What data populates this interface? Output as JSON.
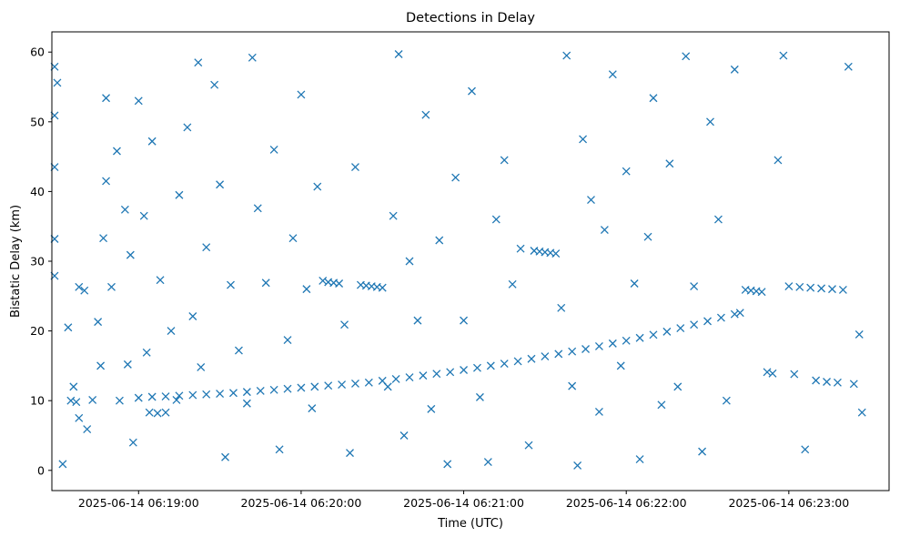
{
  "chart_data": {
    "type": "scatter",
    "title": "Detections in Delay",
    "xlabel": "Time (UTC)",
    "ylabel": "Bistatic Delay (km)",
    "marker": "x",
    "color": "#1f77b4",
    "grid": false,
    "x_axis": {
      "type": "time",
      "range": [
        "2025-06-14 06:18:28",
        "2025-06-14 06:23:37"
      ],
      "ticks": [
        "2025-06-14 06:19:00",
        "2025-06-14 06:20:00",
        "2025-06-14 06:21:00",
        "2025-06-14 06:22:00",
        "2025-06-14 06:23:00"
      ]
    },
    "y_axis": {
      "range": [
        -2.9,
        62.9
      ],
      "ticks": [
        0,
        10,
        20,
        30,
        40,
        50,
        60
      ]
    },
    "series": [
      {
        "description_of_data": "main track rising from ~10.3 km to ~22.5 km",
        "points": [
          [
            "2025-06-14 06:19:00",
            10.4
          ],
          [
            "2025-06-14 06:19:05",
            10.55
          ],
          [
            "2025-06-14 06:19:10",
            10.6
          ],
          [
            "2025-06-14 06:19:15",
            10.7
          ],
          [
            "2025-06-14 06:19:20",
            10.8
          ],
          [
            "2025-06-14 06:19:25",
            10.9
          ],
          [
            "2025-06-14 06:19:30",
            11.0
          ],
          [
            "2025-06-14 06:19:35",
            11.1
          ],
          [
            "2025-06-14 06:19:40",
            11.25
          ],
          [
            "2025-06-14 06:19:45",
            11.4
          ],
          [
            "2025-06-14 06:19:50",
            11.55
          ],
          [
            "2025-06-14 06:19:55",
            11.7
          ],
          [
            "2025-06-14 06:20:00",
            11.85
          ],
          [
            "2025-06-14 06:20:05",
            12.0
          ],
          [
            "2025-06-14 06:20:10",
            12.15
          ],
          [
            "2025-06-14 06:20:15",
            12.3
          ],
          [
            "2025-06-14 06:20:20",
            12.45
          ],
          [
            "2025-06-14 06:20:25",
            12.6
          ],
          [
            "2025-06-14 06:20:30",
            12.85
          ],
          [
            "2025-06-14 06:20:35",
            13.1
          ],
          [
            "2025-06-14 06:20:40",
            13.35
          ],
          [
            "2025-06-14 06:20:45",
            13.6
          ],
          [
            "2025-06-14 06:20:50",
            13.85
          ],
          [
            "2025-06-14 06:20:55",
            14.1
          ],
          [
            "2025-06-14 06:21:00",
            14.4
          ],
          [
            "2025-06-14 06:21:05",
            14.7
          ],
          [
            "2025-06-14 06:21:10",
            15.0
          ],
          [
            "2025-06-14 06:21:15",
            15.3
          ],
          [
            "2025-06-14 06:21:20",
            15.65
          ],
          [
            "2025-06-14 06:21:25",
            16.0
          ],
          [
            "2025-06-14 06:21:30",
            16.35
          ],
          [
            "2025-06-14 06:21:35",
            16.7
          ],
          [
            "2025-06-14 06:21:40",
            17.05
          ],
          [
            "2025-06-14 06:21:45",
            17.4
          ],
          [
            "2025-06-14 06:21:50",
            17.8
          ],
          [
            "2025-06-14 06:21:55",
            18.2
          ],
          [
            "2025-06-14 06:22:00",
            18.6
          ],
          [
            "2025-06-14 06:22:05",
            19.0
          ],
          [
            "2025-06-14 06:22:10",
            19.45
          ],
          [
            "2025-06-14 06:22:15",
            19.9
          ],
          [
            "2025-06-14 06:22:20",
            20.4
          ],
          [
            "2025-06-14 06:22:25",
            20.9
          ],
          [
            "2025-06-14 06:22:30",
            21.4
          ],
          [
            "2025-06-14 06:22:35",
            21.9
          ],
          [
            "2025-06-14 06:22:40",
            22.4
          ],
          [
            "2025-06-14 06:22:42",
            22.6
          ]
        ]
      },
      {
        "description_of_data": "secondary horizontal tracks and scattered clutter",
        "points": [
          [
            "2025-06-14 06:18:29",
            57.9
          ],
          [
            "2025-06-14 06:18:29",
            50.9
          ],
          [
            "2025-06-14 06:18:29",
            43.5
          ],
          [
            "2025-06-14 06:18:29",
            33.2
          ],
          [
            "2025-06-14 06:18:29",
            27.9
          ],
          [
            "2025-06-14 06:18:30",
            55.6
          ],
          [
            "2025-06-14 06:18:32",
            0.9
          ],
          [
            "2025-06-14 06:18:34",
            20.5
          ],
          [
            "2025-06-14 06:18:35",
            10.0
          ],
          [
            "2025-06-14 06:18:36",
            12.0
          ],
          [
            "2025-06-14 06:18:37",
            9.8
          ],
          [
            "2025-06-14 06:18:38",
            26.3
          ],
          [
            "2025-06-14 06:18:38",
            7.5
          ],
          [
            "2025-06-14 06:18:40",
            25.8
          ],
          [
            "2025-06-14 06:18:41",
            5.9
          ],
          [
            "2025-06-14 06:18:43",
            10.1
          ],
          [
            "2025-06-14 06:18:45",
            21.3
          ],
          [
            "2025-06-14 06:18:46",
            15.0
          ],
          [
            "2025-06-14 06:18:47",
            33.3
          ],
          [
            "2025-06-14 06:18:48",
            41.5
          ],
          [
            "2025-06-14 06:18:48",
            53.4
          ],
          [
            "2025-06-14 06:18:50",
            26.3
          ],
          [
            "2025-06-14 06:18:52",
            45.8
          ],
          [
            "2025-06-14 06:18:53",
            10.0
          ],
          [
            "2025-06-14 06:18:55",
            37.4
          ],
          [
            "2025-06-14 06:18:56",
            15.2
          ],
          [
            "2025-06-14 06:18:57",
            30.9
          ],
          [
            "2025-06-14 06:18:58",
            4.0
          ],
          [
            "2025-06-14 06:19:00",
            53.0
          ],
          [
            "2025-06-14 06:19:02",
            36.5
          ],
          [
            "2025-06-14 06:19:03",
            16.9
          ],
          [
            "2025-06-14 06:19:04",
            8.3
          ],
          [
            "2025-06-14 06:19:05",
            47.2
          ],
          [
            "2025-06-14 06:19:07",
            8.2
          ],
          [
            "2025-06-14 06:19:08",
            27.3
          ],
          [
            "2025-06-14 06:19:10",
            8.3
          ],
          [
            "2025-06-14 06:19:12",
            20.0
          ],
          [
            "2025-06-14 06:19:14",
            10.1
          ],
          [
            "2025-06-14 06:19:15",
            39.5
          ],
          [
            "2025-06-14 06:19:18",
            49.2
          ],
          [
            "2025-06-14 06:19:20",
            22.1
          ],
          [
            "2025-06-14 06:19:22",
            58.5
          ],
          [
            "2025-06-14 06:19:23",
            14.8
          ],
          [
            "2025-06-14 06:19:25",
            32.0
          ],
          [
            "2025-06-14 06:19:28",
            55.3
          ],
          [
            "2025-06-14 06:19:30",
            41.0
          ],
          [
            "2025-06-14 06:19:32",
            1.9
          ],
          [
            "2025-06-14 06:19:34",
            26.6
          ],
          [
            "2025-06-14 06:19:37",
            17.2
          ],
          [
            "2025-06-14 06:19:40",
            9.6
          ],
          [
            "2025-06-14 06:19:42",
            59.2
          ],
          [
            "2025-06-14 06:19:44",
            37.6
          ],
          [
            "2025-06-14 06:19:47",
            26.9
          ],
          [
            "2025-06-14 06:19:50",
            46.0
          ],
          [
            "2025-06-14 06:19:52",
            3.0
          ],
          [
            "2025-06-14 06:19:55",
            18.7
          ],
          [
            "2025-06-14 06:19:57",
            33.3
          ],
          [
            "2025-06-14 06:20:00",
            53.9
          ],
          [
            "2025-06-14 06:20:02",
            26.0
          ],
          [
            "2025-06-14 06:20:04",
            8.9
          ],
          [
            "2025-06-14 06:20:06",
            40.7
          ],
          [
            "2025-06-14 06:20:08",
            27.2
          ],
          [
            "2025-06-14 06:20:10",
            27.0
          ],
          [
            "2025-06-14 06:20:12",
            26.9
          ],
          [
            "2025-06-14 06:20:14",
            26.8
          ],
          [
            "2025-06-14 06:20:16",
            20.9
          ],
          [
            "2025-06-14 06:20:18",
            2.5
          ],
          [
            "2025-06-14 06:20:20",
            43.5
          ],
          [
            "2025-06-14 06:20:22",
            26.6
          ],
          [
            "2025-06-14 06:20:24",
            26.5
          ],
          [
            "2025-06-14 06:20:26",
            26.4
          ],
          [
            "2025-06-14 06:20:28",
            26.3
          ],
          [
            "2025-06-14 06:20:30",
            26.2
          ],
          [
            "2025-06-14 06:20:32",
            12.0
          ],
          [
            "2025-06-14 06:20:34",
            36.5
          ],
          [
            "2025-06-14 06:20:36",
            59.7
          ],
          [
            "2025-06-14 06:20:38",
            5.0
          ],
          [
            "2025-06-14 06:20:40",
            30.0
          ],
          [
            "2025-06-14 06:20:43",
            21.5
          ],
          [
            "2025-06-14 06:20:46",
            51.0
          ],
          [
            "2025-06-14 06:20:48",
            8.8
          ],
          [
            "2025-06-14 06:20:51",
            33.0
          ],
          [
            "2025-06-14 06:20:54",
            0.9
          ],
          [
            "2025-06-14 06:20:57",
            42.0
          ],
          [
            "2025-06-14 06:21:00",
            21.5
          ],
          [
            "2025-06-14 06:21:03",
            54.4
          ],
          [
            "2025-06-14 06:21:06",
            10.5
          ],
          [
            "2025-06-14 06:21:09",
            1.2
          ],
          [
            "2025-06-14 06:21:12",
            36.0
          ],
          [
            "2025-06-14 06:21:15",
            44.5
          ],
          [
            "2025-06-14 06:21:18",
            26.7
          ],
          [
            "2025-06-14 06:21:21",
            31.8
          ],
          [
            "2025-06-14 06:21:24",
            3.6
          ],
          [
            "2025-06-14 06:21:26",
            31.5
          ],
          [
            "2025-06-14 06:21:28",
            31.4
          ],
          [
            "2025-06-14 06:21:30",
            31.3
          ],
          [
            "2025-06-14 06:21:32",
            31.2
          ],
          [
            "2025-06-14 06:21:34",
            31.1
          ],
          [
            "2025-06-14 06:21:36",
            23.3
          ],
          [
            "2025-06-14 06:21:38",
            59.5
          ],
          [
            "2025-06-14 06:21:40",
            12.1
          ],
          [
            "2025-06-14 06:21:42",
            0.7
          ],
          [
            "2025-06-14 06:21:44",
            47.5
          ],
          [
            "2025-06-14 06:21:47",
            38.8
          ],
          [
            "2025-06-14 06:21:50",
            8.4
          ],
          [
            "2025-06-14 06:21:52",
            34.5
          ],
          [
            "2025-06-14 06:21:55",
            56.8
          ],
          [
            "2025-06-14 06:21:58",
            15.0
          ],
          [
            "2025-06-14 06:22:00",
            42.9
          ],
          [
            "2025-06-14 06:22:03",
            26.8
          ],
          [
            "2025-06-14 06:22:05",
            1.6
          ],
          [
            "2025-06-14 06:22:08",
            33.5
          ],
          [
            "2025-06-14 06:22:10",
            53.4
          ],
          [
            "2025-06-14 06:22:13",
            9.4
          ],
          [
            "2025-06-14 06:22:16",
            44.0
          ],
          [
            "2025-06-14 06:22:19",
            12.0
          ],
          [
            "2025-06-14 06:22:22",
            59.4
          ],
          [
            "2025-06-14 06:22:25",
            26.4
          ],
          [
            "2025-06-14 06:22:28",
            2.7
          ],
          [
            "2025-06-14 06:22:31",
            50.0
          ],
          [
            "2025-06-14 06:22:34",
            36.0
          ],
          [
            "2025-06-14 06:22:37",
            10.0
          ],
          [
            "2025-06-14 06:22:40",
            57.5
          ],
          [
            "2025-06-14 06:22:44",
            25.9
          ],
          [
            "2025-06-14 06:22:46",
            25.8
          ],
          [
            "2025-06-14 06:22:48",
            25.7
          ],
          [
            "2025-06-14 06:22:50",
            25.6
          ],
          [
            "2025-06-14 06:22:52",
            14.1
          ],
          [
            "2025-06-14 06:22:54",
            13.9
          ],
          [
            "2025-06-14 06:22:56",
            44.5
          ],
          [
            "2025-06-14 06:22:58",
            59.5
          ],
          [
            "2025-06-14 06:23:00",
            26.4
          ],
          [
            "2025-06-14 06:23:02",
            13.8
          ],
          [
            "2025-06-14 06:23:04",
            26.3
          ],
          [
            "2025-06-14 06:23:06",
            3.0
          ],
          [
            "2025-06-14 06:23:08",
            26.2
          ],
          [
            "2025-06-14 06:23:10",
            12.9
          ],
          [
            "2025-06-14 06:23:12",
            26.1
          ],
          [
            "2025-06-14 06:23:14",
            12.7
          ],
          [
            "2025-06-14 06:23:16",
            26.0
          ],
          [
            "2025-06-14 06:23:18",
            12.6
          ],
          [
            "2025-06-14 06:23:20",
            25.9
          ],
          [
            "2025-06-14 06:23:22",
            57.9
          ],
          [
            "2025-06-14 06:23:24",
            12.4
          ],
          [
            "2025-06-14 06:23:26",
            19.5
          ],
          [
            "2025-06-14 06:23:27",
            8.3
          ]
        ]
      }
    ]
  }
}
